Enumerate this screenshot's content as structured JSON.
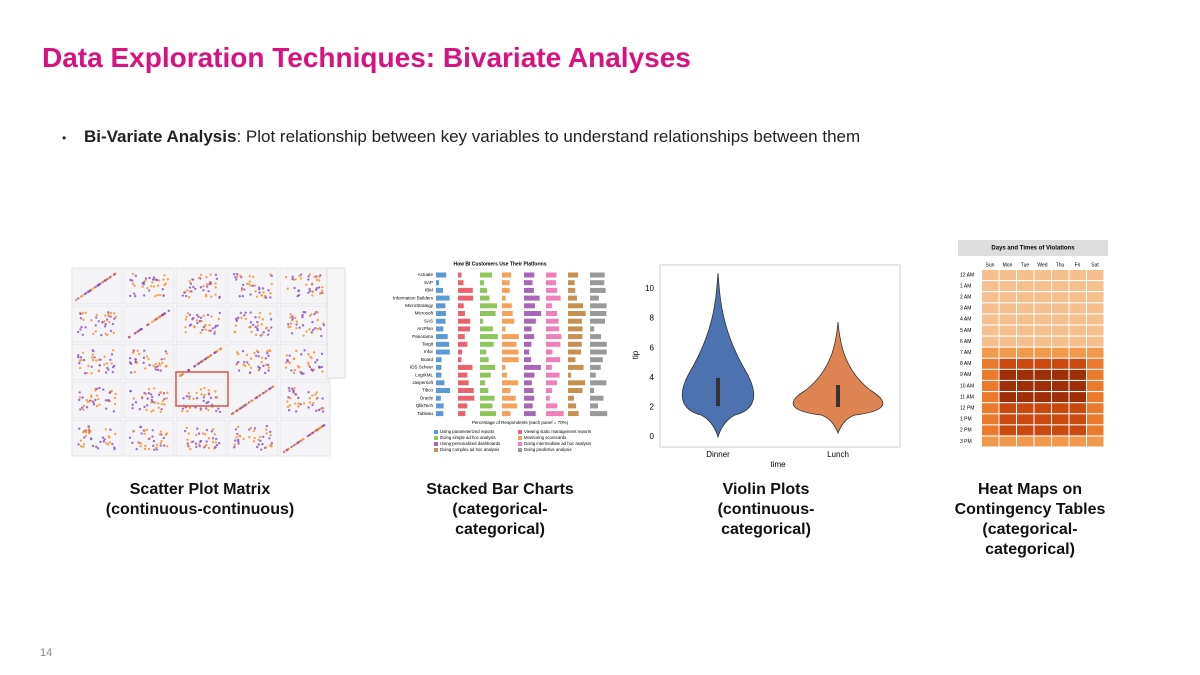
{
  "title": "Data Exploration Techniques: Bivariate Analyses",
  "bullet": {
    "bold": "Bi-Variate Analysis",
    "text": ": Plot relationship between key variables to understand relationships between them"
  },
  "figures": [
    {
      "caption": [
        "Scatter Plot Matrix",
        "(continuous-continuous)"
      ]
    },
    {
      "caption": [
        "Stacked Bar Charts",
        "(categorical-",
        "categorical)"
      ],
      "chart_title": "How BI Customers Use Their Platforms",
      "categories": [
        "Actuate",
        "SAP",
        "IBM",
        "Information Builders",
        "MicroStrategy",
        "Microsoft",
        "SAS",
        "ArcPlan",
        "Panorama",
        "Targit",
        "Infor",
        "Board",
        "IDS Scheer",
        "LogiXML",
        "Jaspersoft",
        "Tibco",
        "Oracle",
        "QlikTech",
        "Tableau"
      ],
      "x_label": "Percentage of Respondents (each panel = 70%)",
      "legend": [
        "Using parameterized reports",
        "Viewing static management reports",
        "Doing simple ad hoc analysis",
        "Monitoring scorecards",
        "Using personalized dashboards",
        "Doing intermediate ad hoc analysis",
        "Doing complex ad hoc analysis",
        "Doing predictive analysis"
      ]
    },
    {
      "caption": [
        "Violin Plots",
        "(continuous-",
        "categorical)"
      ],
      "y_label": "tip",
      "x_label": "time",
      "categories": [
        "Dinner",
        "Lunch"
      ],
      "yticks": [
        0,
        2,
        4,
        6,
        8,
        10
      ]
    },
    {
      "caption": [
        "Heat Maps on",
        "Contingency Tables",
        "(categorical-",
        "categorical)"
      ],
      "chart_title": "Days and Times of Violations",
      "columns": [
        "Sun",
        "Mon",
        "Tue",
        "Wed",
        "Thu",
        "Fri",
        "Sat"
      ],
      "rows": [
        "12 AM",
        "1 AM",
        "2 AM",
        "3 AM",
        "4 AM",
        "5 AM",
        "6 AM",
        "7 AM",
        "8 AM",
        "9 AM",
        "10 AM",
        "11 AM",
        "12 PM",
        "1 PM",
        "2 PM",
        "3 PM"
      ]
    }
  ],
  "page_number": "14"
}
